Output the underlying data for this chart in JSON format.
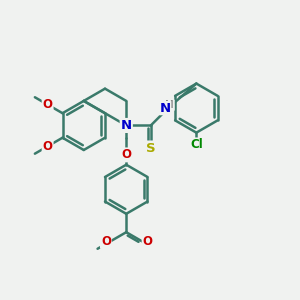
{
  "background_color": "#f0f2f0",
  "bond_color": "#3a7a6a",
  "bond_width": 1.8,
  "atom_colors": {
    "N": "#0000cc",
    "O": "#cc0000",
    "S": "#aaaa00",
    "Cl": "#008800",
    "H": "#888888",
    "C": "#3a7a6a"
  },
  "font_size": 8.5,
  "fig_size": [
    3.0,
    3.0
  ],
  "dpi": 100,
  "xlim": [
    0,
    12
  ],
  "ylim": [
    0,
    12
  ]
}
